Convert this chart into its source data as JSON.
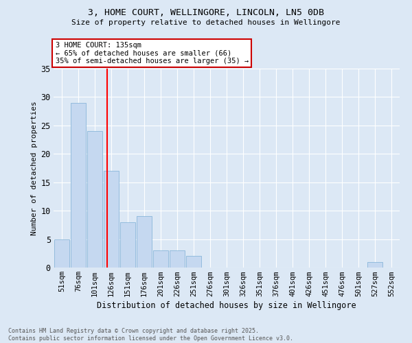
{
  "title1": "3, HOME COURT, WELLINGORE, LINCOLN, LN5 0DB",
  "title2": "Size of property relative to detached houses in Wellingore",
  "xlabel": "Distribution of detached houses by size in Wellingore",
  "ylabel": "Number of detached properties",
  "categories": [
    "51sqm",
    "76sqm",
    "101sqm",
    "126sqm",
    "151sqm",
    "176sqm",
    "201sqm",
    "226sqm",
    "251sqm",
    "276sqm",
    "301sqm",
    "326sqm",
    "351sqm",
    "376sqm",
    "401sqm",
    "426sqm",
    "451sqm",
    "476sqm",
    "501sqm",
    "527sqm",
    "552sqm"
  ],
  "values": [
    5,
    29,
    24,
    17,
    8,
    9,
    3,
    3,
    2,
    0,
    0,
    0,
    0,
    0,
    0,
    0,
    0,
    0,
    0,
    1,
    0
  ],
  "bar_color": "#c5d8f0",
  "bar_edge_color": "#7aadd4",
  "red_line_x": 2.75,
  "annotation_text": "3 HOME COURT: 135sqm\n← 65% of detached houses are smaller (66)\n35% of semi-detached houses are larger (35) →",
  "annotation_box_color": "#ffffff",
  "annotation_box_edge": "#cc0000",
  "ylim": [
    0,
    35
  ],
  "yticks": [
    0,
    5,
    10,
    15,
    20,
    25,
    30,
    35
  ],
  "footer": "Contains HM Land Registry data © Crown copyright and database right 2025.\nContains public sector information licensed under the Open Government Licence v3.0.",
  "bg_color": "#dce8f5",
  "plot_bg_color": "#dce8f5",
  "grid_color": "#ffffff"
}
